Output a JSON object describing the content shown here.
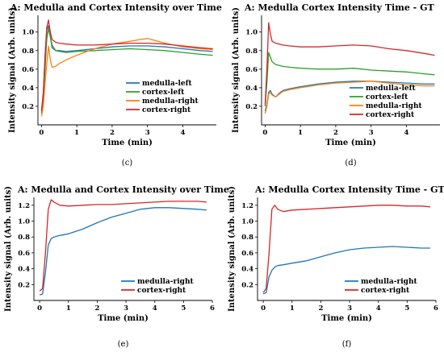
{
  "chart_data": [
    {
      "type": "line",
      "panel": "c",
      "caption": "(c)",
      "title": "A: Medulla and Cortex Intensity over Time",
      "xlabel": "Time (min)",
      "ylabel": "Intensity signal (Arb. units)",
      "xlim": [
        -0.1,
        4.95
      ],
      "ylim": [
        0.0,
        1.18
      ],
      "xticks": [
        0,
        1,
        2,
        3,
        4,
        5
      ],
      "yticks": [
        0.2,
        0.4,
        0.6,
        0.8,
        1.0
      ],
      "ytick_labels": [
        "0.2",
        "0.4",
        "0.6",
        "0.8",
        "1.0"
      ],
      "legend_position": "lower-right",
      "series": [
        {
          "name": "medulla-left",
          "color": "#1f77b4",
          "x": [
            0,
            0.05,
            0.1,
            0.15,
            0.2,
            0.25,
            0.3,
            0.4,
            0.5,
            0.7,
            1.0,
            1.5,
            2.0,
            2.5,
            3.0,
            3.5,
            4.0,
            4.5,
            4.85
          ],
          "y": [
            0.15,
            0.35,
            0.75,
            1.02,
            1.07,
            0.95,
            0.83,
            0.8,
            0.8,
            0.79,
            0.8,
            0.82,
            0.84,
            0.85,
            0.85,
            0.84,
            0.82,
            0.8,
            0.79
          ]
        },
        {
          "name": "cortex-left",
          "color": "#2ca02c",
          "x": [
            0,
            0.05,
            0.1,
            0.15,
            0.2,
            0.25,
            0.3,
            0.4,
            0.5,
            0.7,
            1.0,
            1.5,
            2.0,
            2.5,
            3.0,
            3.5,
            4.0,
            4.5,
            4.85
          ],
          "y": [
            0.12,
            0.3,
            0.6,
            0.92,
            1.04,
            0.95,
            0.86,
            0.8,
            0.79,
            0.78,
            0.79,
            0.8,
            0.81,
            0.82,
            0.81,
            0.8,
            0.78,
            0.76,
            0.75
          ]
        },
        {
          "name": "medulla-right",
          "color": "#ff7f0e",
          "x": [
            0,
            0.05,
            0.1,
            0.15,
            0.2,
            0.25,
            0.3,
            0.4,
            0.5,
            0.7,
            1.0,
            1.5,
            2.0,
            2.5,
            2.8,
            3.0,
            3.2,
            3.5,
            4.0,
            4.5,
            4.85
          ],
          "y": [
            0.09,
            0.2,
            0.45,
            0.65,
            0.85,
            0.7,
            0.62,
            0.63,
            0.66,
            0.7,
            0.75,
            0.82,
            0.87,
            0.9,
            0.92,
            0.93,
            0.91,
            0.88,
            0.84,
            0.82,
            0.81
          ]
        },
        {
          "name": "cortex-right",
          "color": "#d62728",
          "x": [
            0,
            0.05,
            0.1,
            0.15,
            0.2,
            0.25,
            0.3,
            0.4,
            0.5,
            0.7,
            1.0,
            1.5,
            2.0,
            2.5,
            3.0,
            3.5,
            4.0,
            4.5,
            4.85
          ],
          "y": [
            0.15,
            0.32,
            0.72,
            1.05,
            1.13,
            1.0,
            0.92,
            0.89,
            0.88,
            0.87,
            0.86,
            0.86,
            0.87,
            0.88,
            0.88,
            0.87,
            0.85,
            0.83,
            0.82
          ]
        }
      ]
    },
    {
      "type": "line",
      "panel": "d",
      "caption": "(d)",
      "title": "A: Medulla Cortex Intensity Time - GT",
      "xlabel": "Time (min)",
      "ylabel": "Intensity signal (Arb. units)",
      "xlim": [
        -0.1,
        4.95
      ],
      "ylim": [
        0.0,
        1.18
      ],
      "xticks": [
        0,
        1,
        2,
        3,
        4,
        5
      ],
      "yticks": [
        0.2,
        0.4,
        0.6,
        0.8,
        1.0
      ],
      "ytick_labels": [
        "0.2",
        "0.4",
        "0.6",
        "0.8",
        "1.0"
      ],
      "legend_position": "lower-right",
      "series": [
        {
          "name": "medulla-left",
          "color": "#1f77b4",
          "x": [
            0,
            0.05,
            0.1,
            0.15,
            0.2,
            0.3,
            0.4,
            0.5,
            0.7,
            1.0,
            1.5,
            2.0,
            2.5,
            3.0,
            3.5,
            4.0,
            4.5,
            4.8
          ],
          "y": [
            0.15,
            0.22,
            0.35,
            0.37,
            0.33,
            0.3,
            0.34,
            0.37,
            0.39,
            0.41,
            0.44,
            0.46,
            0.47,
            0.47,
            0.46,
            0.45,
            0.44,
            0.44
          ]
        },
        {
          "name": "cortex-left",
          "color": "#2ca02c",
          "x": [
            0,
            0.05,
            0.1,
            0.15,
            0.2,
            0.3,
            0.4,
            0.5,
            0.7,
            1.0,
            1.5,
            2.0,
            2.5,
            3.0,
            3.5,
            4.0,
            4.5,
            4.8
          ],
          "y": [
            0.2,
            0.45,
            0.78,
            0.73,
            0.68,
            0.65,
            0.64,
            0.63,
            0.62,
            0.61,
            0.6,
            0.6,
            0.61,
            0.59,
            0.58,
            0.57,
            0.55,
            0.54
          ]
        },
        {
          "name": "medulla-right",
          "color": "#ff7f0e",
          "x": [
            0,
            0.05,
            0.1,
            0.15,
            0.2,
            0.3,
            0.4,
            0.5,
            0.7,
            1.0,
            1.5,
            2.0,
            2.5,
            3.0,
            3.5,
            4.0,
            4.5,
            4.8
          ],
          "y": [
            0.12,
            0.2,
            0.33,
            0.35,
            0.32,
            0.3,
            0.33,
            0.36,
            0.38,
            0.4,
            0.43,
            0.45,
            0.46,
            0.47,
            0.45,
            0.43,
            0.42,
            0.42
          ]
        },
        {
          "name": "cortex-right",
          "color": "#d62728",
          "x": [
            0,
            0.05,
            0.1,
            0.15,
            0.2,
            0.3,
            0.4,
            0.5,
            0.7,
            1.0,
            1.5,
            2.0,
            2.5,
            3.0,
            3.5,
            4.0,
            4.5,
            4.8
          ],
          "y": [
            0.22,
            0.6,
            1.1,
            0.98,
            0.9,
            0.88,
            0.87,
            0.86,
            0.85,
            0.84,
            0.84,
            0.85,
            0.86,
            0.85,
            0.82,
            0.8,
            0.77,
            0.75
          ]
        }
      ]
    },
    {
      "type": "line",
      "panel": "e",
      "caption": "(e)",
      "title": "A: Medulla and Cortex Intensity over Time",
      "xlabel": "Time (min)",
      "ylabel": "Intensity signal (Arb. units)",
      "xlim": [
        -0.2,
        6.0
      ],
      "ylim": [
        0.0,
        1.3
      ],
      "xticks": [
        0,
        1,
        2,
        3,
        4,
        5,
        6
      ],
      "yticks": [
        0.2,
        0.4,
        0.6,
        0.8,
        1.0,
        1.2
      ],
      "ytick_labels": [
        "0.2",
        "0.4",
        "0.6",
        "0.8",
        "1.0",
        "1.2"
      ],
      "legend_position": "lower-right",
      "series": [
        {
          "name": "medulla-right",
          "color": "#1f77b4",
          "x": [
            0,
            0.1,
            0.2,
            0.3,
            0.4,
            0.5,
            0.7,
            1.0,
            1.5,
            2.0,
            2.5,
            3.0,
            3.5,
            4.0,
            4.5,
            5.0,
            5.5,
            5.8
          ],
          "y": [
            0.07,
            0.08,
            0.35,
            0.7,
            0.78,
            0.8,
            0.82,
            0.84,
            0.9,
            0.98,
            1.05,
            1.1,
            1.15,
            1.17,
            1.17,
            1.16,
            1.15,
            1.14
          ]
        },
        {
          "name": "cortex-right",
          "color": "#d62728",
          "x": [
            0,
            0.1,
            0.2,
            0.3,
            0.4,
            0.5,
            0.7,
            1.0,
            1.5,
            2.0,
            2.5,
            3.0,
            3.5,
            4.0,
            4.5,
            5.0,
            5.5,
            5.8
          ],
          "y": [
            0.12,
            0.15,
            0.6,
            1.15,
            1.27,
            1.24,
            1.2,
            1.19,
            1.2,
            1.21,
            1.21,
            1.22,
            1.23,
            1.24,
            1.25,
            1.25,
            1.25,
            1.24
          ]
        }
      ]
    },
    {
      "type": "line",
      "panel": "f",
      "caption": "(f)",
      "title": "A: Medulla Cortex Intensity Time - GT",
      "xlabel": "Time (min)",
      "ylabel": "Intensity signal (Arb. units)",
      "xlim": [
        -0.2,
        6.0
      ],
      "ylim": [
        0.0,
        1.3
      ],
      "xticks": [
        0,
        1,
        2,
        3,
        4,
        5,
        6
      ],
      "yticks": [
        0.2,
        0.4,
        0.6,
        0.8,
        1.0,
        1.2
      ],
      "ytick_labels": [
        "0.2",
        "0.4",
        "0.6",
        "0.8",
        "1.0",
        "1.2"
      ],
      "legend_position": "lower-right",
      "series": [
        {
          "name": "medulla-right",
          "color": "#1f77b4",
          "x": [
            0,
            0.1,
            0.2,
            0.3,
            0.4,
            0.5,
            0.7,
            1.0,
            1.5,
            2.0,
            2.5,
            3.0,
            3.5,
            4.0,
            4.5,
            5.0,
            5.5,
            5.8
          ],
          "y": [
            0.08,
            0.1,
            0.3,
            0.38,
            0.42,
            0.44,
            0.45,
            0.47,
            0.5,
            0.55,
            0.6,
            0.64,
            0.66,
            0.67,
            0.68,
            0.67,
            0.66,
            0.66
          ]
        },
        {
          "name": "cortex-right",
          "color": "#d62728",
          "x": [
            0,
            0.1,
            0.2,
            0.3,
            0.4,
            0.5,
            0.7,
            1.0,
            1.5,
            2.0,
            2.5,
            3.0,
            3.5,
            4.0,
            4.5,
            5.0,
            5.5,
            5.8
          ],
          "y": [
            0.1,
            0.15,
            0.6,
            1.15,
            1.2,
            1.15,
            1.12,
            1.14,
            1.15,
            1.16,
            1.17,
            1.18,
            1.19,
            1.2,
            1.2,
            1.19,
            1.19,
            1.18
          ]
        }
      ]
    }
  ]
}
